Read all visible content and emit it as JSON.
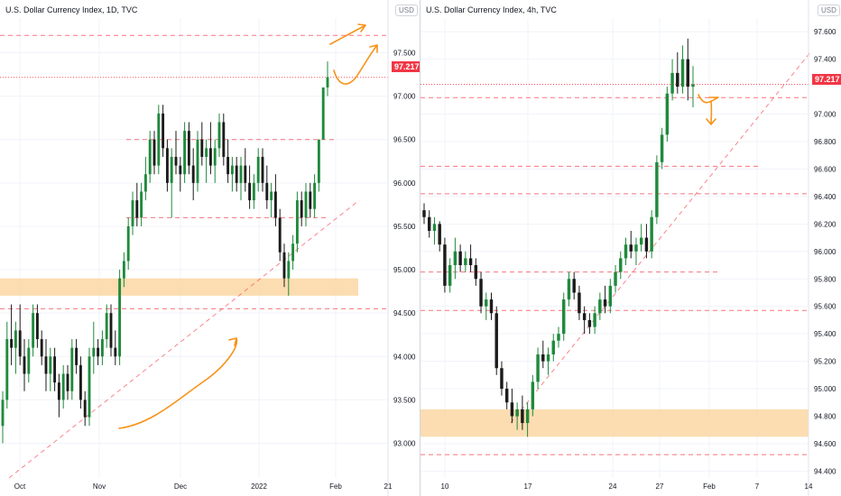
{
  "colors": {
    "up": "#26a69a",
    "up_candle": "#1f8a3c",
    "down": "#1b1b1b",
    "level_line": "#f7525f",
    "support_zone": "#fbd9a8",
    "arrow": "#f7931a",
    "grid": "#f0f3fa",
    "price_badge": "#f23645"
  },
  "left_chart": {
    "title": "U.S. Dollar Currency Index, 1D, TVC",
    "axis_currency": "USD",
    "last_price": "97.217",
    "y_ticks": [
      "97.500",
      "97.000",
      "96.500",
      "96.000",
      "95.500",
      "95.000",
      "94.500",
      "94.000",
      "93.500",
      "93.000"
    ],
    "x_ticks": [
      "Oct",
      "Nov",
      "Dec",
      "2022",
      "Feb",
      "21"
    ]
  },
  "right_chart": {
    "title": "U.S. Dollar Currency Index, 4h, TVC",
    "axis_currency": "USD",
    "last_price": "97.217",
    "y_ticks": [
      "97.600",
      "97.400",
      "97.000",
      "96.800",
      "96.600",
      "96.400",
      "96.200",
      "96.000",
      "95.800",
      "95.600",
      "95.400",
      "95.200",
      "95.000",
      "94.800",
      "94.600",
      "94.400"
    ],
    "x_ticks": [
      "10",
      "17",
      "24",
      "27",
      "Feb",
      "7",
      "14"
    ]
  },
  "chart_data": [
    {
      "type": "candlestick",
      "title": "U.S. Dollar Currency Index, 1D, TVC",
      "ylim": [
        92.6,
        97.9
      ],
      "y_ticks": [
        97.5,
        97.0,
        96.5,
        96.0,
        95.5,
        95.0,
        94.5,
        94.0,
        93.5,
        93.0
      ],
      "x_ticks": [
        "Oct",
        "Nov",
        "Dec",
        "2022",
        "Feb",
        "21"
      ],
      "last_price": 97.217,
      "series": [
        {
          "ohlc": [
            [
              93.2,
              93.6,
              93.0,
              93.5
            ],
            [
              93.5,
              94.4,
              93.4,
              94.2
            ],
            [
              94.2,
              94.6,
              93.9,
              94.1
            ],
            [
              94.1,
              94.4,
              93.8,
              94.3
            ],
            [
              94.3,
              94.6,
              93.9,
              94.0
            ],
            [
              94.0,
              94.2,
              93.6,
              93.8
            ],
            [
              93.8,
              94.2,
              93.7,
              94.1
            ],
            [
              94.1,
              94.6,
              94.0,
              94.5
            ],
            [
              94.5,
              94.6,
              94.1,
              94.2
            ],
            [
              94.2,
              94.3,
              93.9,
              94.0
            ],
            [
              94.0,
              94.2,
              93.6,
              93.8
            ],
            [
              93.8,
              94.1,
              93.6,
              94.0
            ],
            [
              94.0,
              94.1,
              93.6,
              93.7
            ],
            [
              93.7,
              93.8,
              93.3,
              93.5
            ],
            [
              93.5,
              93.9,
              93.4,
              93.8
            ],
            [
              93.8,
              93.9,
              93.5,
              93.6
            ],
            [
              93.6,
              94.2,
              93.5,
              94.1
            ],
            [
              94.1,
              94.2,
              93.8,
              93.9
            ],
            [
              93.9,
              94.0,
              93.4,
              93.5
            ],
            [
              93.5,
              93.6,
              93.2,
              93.3
            ],
            [
              93.3,
              94.1,
              93.2,
              94.0
            ],
            [
              94.0,
              94.4,
              93.8,
              94.1
            ],
            [
              94.1,
              94.2,
              93.9,
              94.0
            ],
            [
              94.0,
              94.3,
              93.9,
              94.2
            ],
            [
              94.2,
              94.6,
              94.1,
              94.5
            ],
            [
              94.5,
              94.6,
              94.0,
              94.1
            ],
            [
              94.1,
              94.3,
              93.9,
              94.0
            ],
            [
              94.0,
              95.0,
              93.9,
              94.9
            ],
            [
              94.9,
              95.2,
              94.8,
              95.1
            ],
            [
              95.1,
              95.6,
              95.0,
              95.5
            ],
            [
              95.5,
              95.9,
              95.4,
              95.8
            ],
            [
              95.8,
              96.0,
              95.5,
              95.6
            ],
            [
              95.6,
              96.0,
              95.5,
              95.9
            ],
            [
              95.9,
              96.3,
              95.8,
              96.1
            ],
            [
              96.1,
              96.6,
              96.0,
              96.5
            ],
            [
              96.5,
              96.6,
              96.1,
              96.2
            ],
            [
              96.2,
              96.9,
              96.1,
              96.8
            ],
            [
              96.8,
              96.9,
              96.3,
              96.4
            ],
            [
              96.4,
              96.5,
              95.9,
              96.0
            ],
            [
              96.0,
              96.4,
              95.6,
              96.3
            ],
            [
              96.3,
              96.6,
              96.1,
              96.2
            ],
            [
              96.2,
              96.3,
              95.9,
              96.1
            ],
            [
              96.1,
              96.7,
              96.0,
              96.6
            ],
            [
              96.6,
              96.7,
              96.1,
              96.2
            ],
            [
              96.2,
              96.4,
              95.8,
              96.0
            ],
            [
              96.0,
              96.6,
              95.9,
              96.5
            ],
            [
              96.5,
              96.7,
              96.2,
              96.3
            ],
            [
              96.3,
              96.5,
              96.0,
              96.4
            ],
            [
              96.4,
              96.7,
              96.1,
              96.2
            ],
            [
              96.2,
              96.5,
              96.0,
              96.4
            ],
            [
              96.4,
              96.8,
              96.3,
              96.7
            ],
            [
              96.7,
              96.8,
              96.2,
              96.3
            ],
            [
              96.3,
              96.5,
              96.0,
              96.1
            ],
            [
              96.1,
              96.3,
              95.9,
              96.2
            ],
            [
              96.2,
              96.3,
              95.9,
              96.0
            ],
            [
              96.0,
              96.3,
              95.8,
              96.2
            ],
            [
              96.2,
              96.4,
              95.9,
              96.0
            ],
            [
              96.0,
              96.2,
              95.7,
              95.8
            ],
            [
              95.8,
              96.1,
              95.7,
              96.0
            ],
            [
              96.0,
              96.4,
              95.9,
              96.3
            ],
            [
              96.3,
              96.4,
              95.9,
              96.0
            ],
            [
              96.0,
              96.2,
              95.7,
              95.8
            ],
            [
              95.8,
              96.0,
              95.6,
              95.9
            ],
            [
              95.9,
              96.1,
              95.5,
              95.6
            ],
            [
              95.6,
              95.7,
              95.1,
              95.2
            ],
            [
              95.2,
              95.3,
              94.8,
              94.9
            ],
            [
              94.9,
              95.2,
              94.7,
              95.1
            ],
            [
              95.1,
              95.4,
              95.0,
              95.3
            ],
            [
              95.3,
              95.9,
              95.2,
              95.8
            ],
            [
              95.8,
              95.9,
              95.5,
              95.6
            ],
            [
              95.6,
              96.0,
              95.5,
              95.9
            ],
            [
              95.9,
              96.0,
              95.6,
              95.7
            ],
            [
              95.7,
              96.1,
              95.6,
              96.0
            ],
            [
              96.0,
              96.5,
              95.9,
              96.5
            ],
            [
              96.5,
              97.1,
              96.5,
              97.1
            ],
            [
              97.1,
              97.4,
              97.0,
              97.217
            ]
          ]
        }
      ]
    },
    {
      "type": "candlestick",
      "title": "U.S. Dollar Currency Index, 4h, TVC",
      "ylim": [
        94.35,
        97.7
      ],
      "y_ticks": [
        97.6,
        97.4,
        97.0,
        96.8,
        96.6,
        96.4,
        96.2,
        96.0,
        95.8,
        95.6,
        95.4,
        95.2,
        95.0,
        94.8,
        94.6,
        94.4
      ],
      "x_ticks": [
        "10",
        "17",
        "24",
        "27",
        "Feb",
        "7",
        "14"
      ],
      "last_price": 97.217,
      "series": [
        {
          "ohlc": [
            [
              96.3,
              96.35,
              96.2,
              96.25
            ],
            [
              96.25,
              96.3,
              96.1,
              96.15
            ],
            [
              96.15,
              96.25,
              96.05,
              96.2
            ],
            [
              96.2,
              96.22,
              96.0,
              96.05
            ],
            [
              96.05,
              96.1,
              95.7,
              95.75
            ],
            [
              95.75,
              95.95,
              95.7,
              95.9
            ],
            [
              95.9,
              96.1,
              95.8,
              96.0
            ],
            [
              96.0,
              96.05,
              95.85,
              95.9
            ],
            [
              95.9,
              96.0,
              95.85,
              95.95
            ],
            [
              95.95,
              96.05,
              95.85,
              95.9
            ],
            [
              95.9,
              95.95,
              95.75,
              95.8
            ],
            [
              95.8,
              95.85,
              95.55,
              95.6
            ],
            [
              95.6,
              95.7,
              95.5,
              95.65
            ],
            [
              95.65,
              95.7,
              95.5,
              95.55
            ],
            [
              95.55,
              95.6,
              95.1,
              95.15
            ],
            [
              95.15,
              95.2,
              94.95,
              95.0
            ],
            [
              95.0,
              95.05,
              94.85,
              94.9
            ],
            [
              94.9,
              95.0,
              94.75,
              94.8
            ],
            [
              94.8,
              94.9,
              94.7,
              94.85
            ],
            [
              94.85,
              94.95,
              94.7,
              94.75
            ],
            [
              94.75,
              94.9,
              94.65,
              94.85
            ],
            [
              94.85,
              95.1,
              94.8,
              95.05
            ],
            [
              95.05,
              95.3,
              95.0,
              95.25
            ],
            [
              95.25,
              95.35,
              95.15,
              95.2
            ],
            [
              95.2,
              95.3,
              95.1,
              95.25
            ],
            [
              95.25,
              95.4,
              95.2,
              95.35
            ],
            [
              95.35,
              95.45,
              95.3,
              95.4
            ],
            [
              95.4,
              95.7,
              95.35,
              95.65
            ],
            [
              95.65,
              95.85,
              95.6,
              95.8
            ],
            [
              95.8,
              95.85,
              95.65,
              95.7
            ],
            [
              95.7,
              95.75,
              95.5,
              95.55
            ],
            [
              95.55,
              95.6,
              95.4,
              95.5
            ],
            [
              95.5,
              95.55,
              95.4,
              95.45
            ],
            [
              95.45,
              95.6,
              95.4,
              95.55
            ],
            [
              95.55,
              95.7,
              95.5,
              95.65
            ],
            [
              95.65,
              95.75,
              95.55,
              95.6
            ],
            [
              95.6,
              95.8,
              95.55,
              95.75
            ],
            [
              95.75,
              95.9,
              95.7,
              95.85
            ],
            [
              95.85,
              96.0,
              95.8,
              95.95
            ],
            [
              95.95,
              96.1,
              95.9,
              96.05
            ],
            [
              96.05,
              96.15,
              95.95,
              96.0
            ],
            [
              96.0,
              96.1,
              95.9,
              96.05
            ],
            [
              96.05,
              96.2,
              96.0,
              96.1
            ],
            [
              96.1,
              96.2,
              95.95,
              96.0
            ],
            [
              96.0,
              96.3,
              95.95,
              96.25
            ],
            [
              96.25,
              96.7,
              96.2,
              96.65
            ],
            [
              96.65,
              96.9,
              96.6,
              96.85
            ],
            [
              96.85,
              97.2,
              96.8,
              97.15
            ],
            [
              97.15,
              97.4,
              97.1,
              97.3
            ],
            [
              97.3,
              97.45,
              97.15,
              97.2
            ],
            [
              97.2,
              97.5,
              97.15,
              97.4
            ],
            [
              97.4,
              97.55,
              97.1,
              97.2
            ],
            [
              97.2,
              97.35,
              97.05,
              97.217
            ]
          ]
        }
      ]
    }
  ]
}
